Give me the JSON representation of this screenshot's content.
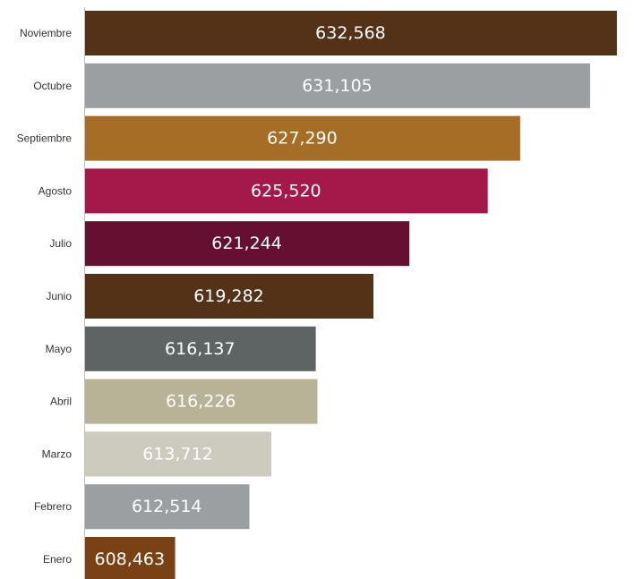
{
  "chart_data": {
    "type": "bar",
    "orientation": "horizontal",
    "categories": [
      "Noviembre",
      "Octubre",
      "Septiembre",
      "Agosto",
      "Julio",
      "Junio",
      "Mayo",
      "Abril",
      "Marzo",
      "Febrero",
      "Enero"
    ],
    "values": [
      632568,
      631105,
      627290,
      625520,
      621244,
      619282,
      616137,
      616226,
      613712,
      612514,
      608463
    ],
    "value_labels": [
      "632,568",
      "631,105",
      "627,290",
      "625,520",
      "621,244",
      "619,282",
      "616,137",
      "616,226",
      "613,712",
      "612,514",
      "608,463"
    ],
    "colors": [
      "#533218",
      "#9b9fa1",
      "#a66d26",
      "#a4194a",
      "#650f31",
      "#533218",
      "#5e6463",
      "#b8b396",
      "#cdcabe",
      "#9b9fa1",
      "#7a4214"
    ],
    "xlim": [
      603500,
      633500
    ],
    "grid": false,
    "legend": "none"
  }
}
